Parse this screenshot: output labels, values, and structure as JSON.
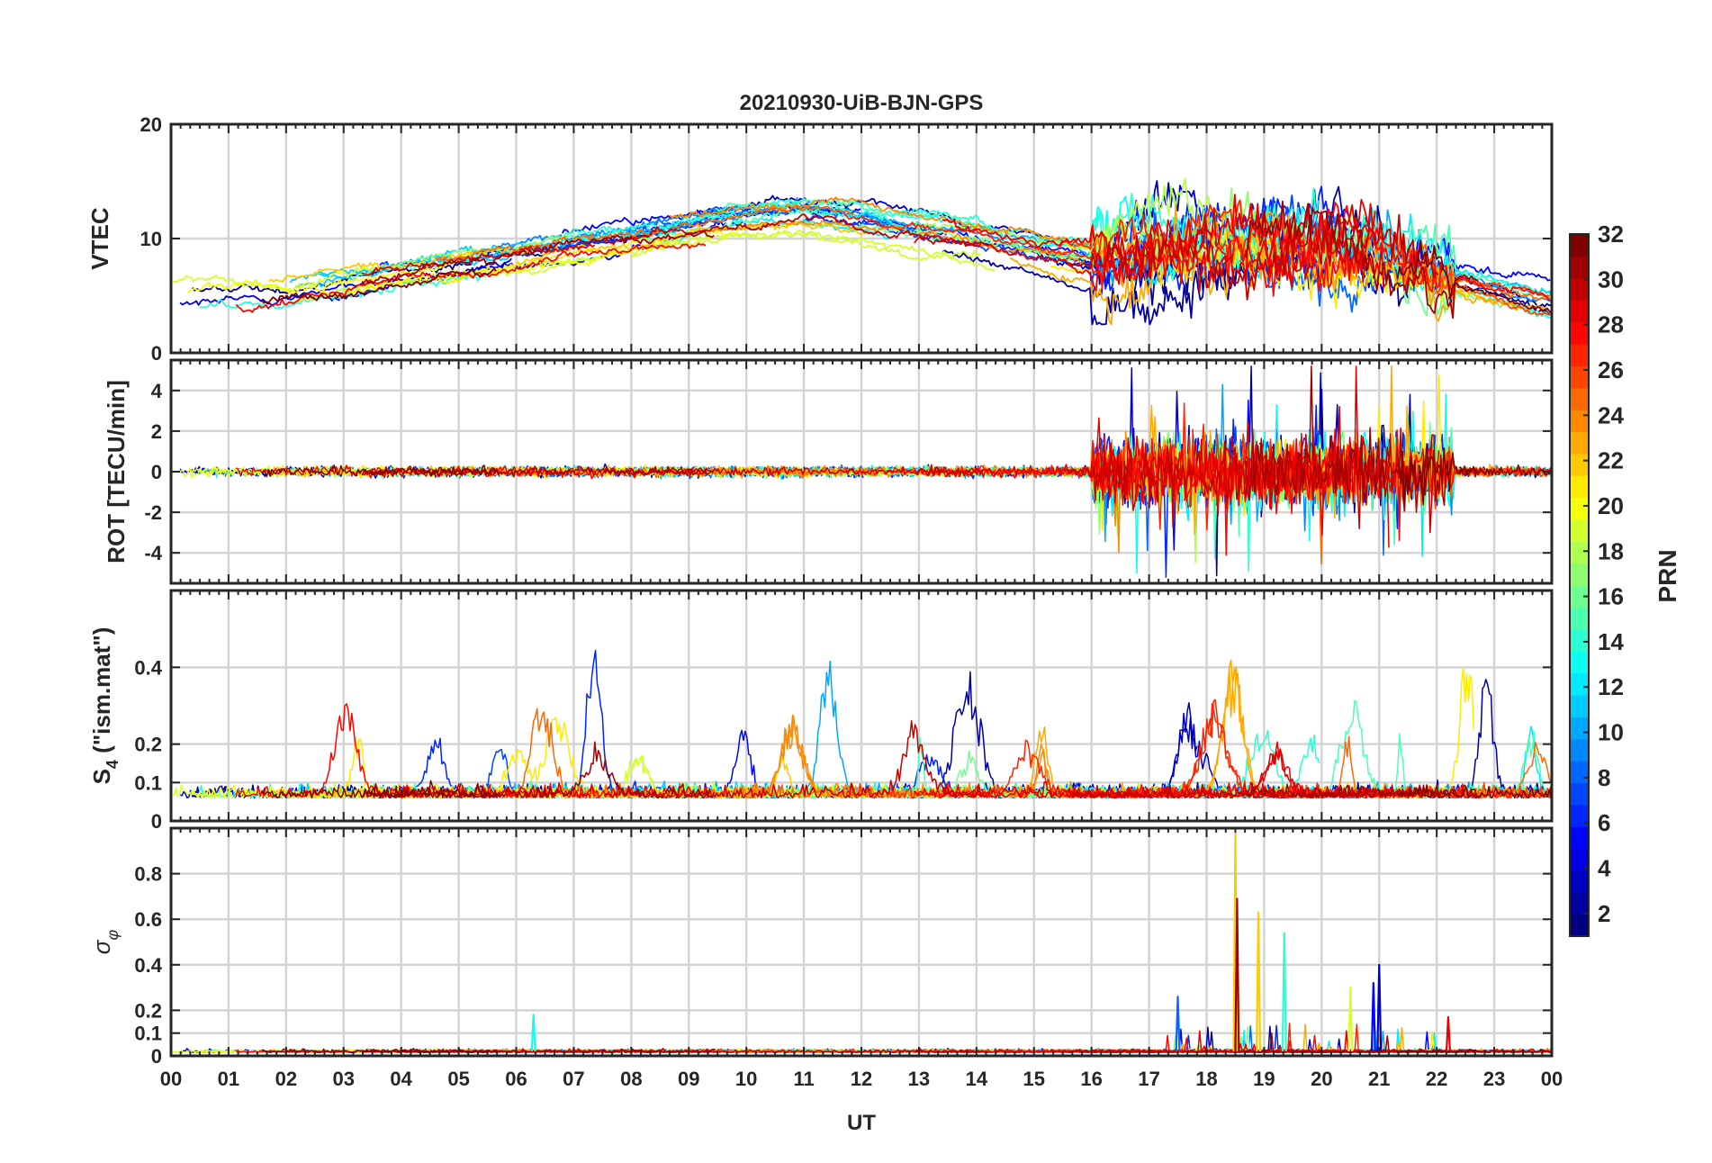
{
  "title": "20210930-UiB-BJN-GPS",
  "xaxis": {
    "label": "UT",
    "range": [
      0,
      24
    ],
    "ticks": [
      "00",
      "01",
      "02",
      "03",
      "04",
      "05",
      "06",
      "07",
      "08",
      "09",
      "10",
      "11",
      "12",
      "13",
      "14",
      "15",
      "16",
      "17",
      "18",
      "19",
      "20",
      "21",
      "22",
      "23",
      "00"
    ]
  },
  "colorbar": {
    "label": "PRN",
    "range": [
      1,
      32
    ],
    "ticks": [
      "2",
      "4",
      "6",
      "8",
      "10",
      "12",
      "14",
      "16",
      "18",
      "20",
      "22",
      "24",
      "26",
      "28",
      "30",
      "32"
    ],
    "colormap": "jet"
  },
  "chart_data": [
    {
      "type": "line",
      "panel": "VTEC",
      "ylabel": "VTEC",
      "ylim": [
        0,
        20
      ],
      "yticks": [
        "0",
        "10",
        "20"
      ],
      "ytick_values": [
        0,
        10,
        20
      ],
      "xlim": [
        0,
        24
      ],
      "grid": true,
      "series_note": "one line per GPS satellite (PRN 1-32), colored by PRN",
      "envelope": {
        "x": [
          0,
          2,
          4,
          6,
          8,
          10,
          11,
          12,
          14,
          16,
          18,
          20,
          21,
          22,
          24
        ],
        "y": [
          5,
          5.5,
          7,
          8.5,
          10,
          11.5,
          12,
          11.5,
          10,
          8,
          9,
          10,
          9.5,
          7,
          4.5
        ]
      }
    },
    {
      "type": "line",
      "panel": "ROT",
      "ylabel": "ROT [TECU/min]",
      "ylim": [
        -5.5,
        5.5
      ],
      "yticks": [
        "-4",
        "-2",
        "0",
        "2",
        "4"
      ],
      "ytick_values": [
        -4,
        -2,
        0,
        2,
        4
      ],
      "xlim": [
        0,
        24
      ],
      "grid": true,
      "series_note": "rate of TEC; quiet (about ±0.5) until ~16 UT, then fluctuations up to about ±5 between 16 and 22 UT"
    },
    {
      "type": "line",
      "panel": "S4",
      "ylabel": "S4 (\"ism.mat\")",
      "ylabel_main": "S",
      "ylabel_sub": "4",
      "ylabel_rest": " (\"ism.mat\")",
      "ylim": [
        0,
        0.6
      ],
      "yticks": [
        "0",
        "0.1",
        "0.2",
        "0.4"
      ],
      "ytick_values": [
        0,
        0.1,
        0.2,
        0.4
      ],
      "xlim": [
        0,
        24
      ],
      "grid": true,
      "series_note": "amplitude scintillation index; baseline ~0.05-0.1 with bursts to ~0.5"
    },
    {
      "type": "line",
      "panel": "sigma_phi",
      "ylabel": "σφ",
      "ylabel_main": "σ",
      "ylabel_sub": "φ",
      "ylim": [
        0,
        1
      ],
      "yticks": [
        "0",
        "0.1",
        "0.2",
        "0.4",
        "0.6",
        "0.8"
      ],
      "ytick_values": [
        0,
        0.1,
        0.2,
        0.4,
        0.6,
        0.8
      ],
      "xlim": [
        0,
        24
      ],
      "grid": true,
      "series_note": "phase scintillation index; near 0.02 with spikes between 17 and 22 UT",
      "spikes": [
        {
          "x": 6.3,
          "y": 0.18,
          "prn": 13
        },
        {
          "x": 17.5,
          "y": 0.26,
          "prn": 8
        },
        {
          "x": 18.5,
          "y": 0.98,
          "prn": 22
        },
        {
          "x": 18.53,
          "y": 0.69,
          "prn": 31
        },
        {
          "x": 18.9,
          "y": 0.63,
          "prn": 22
        },
        {
          "x": 19.35,
          "y": 0.54,
          "prn": 14
        },
        {
          "x": 20.5,
          "y": 0.3,
          "prn": 19
        },
        {
          "x": 20.9,
          "y": 0.32,
          "prn": 5
        },
        {
          "x": 21.0,
          "y": 0.4,
          "prn": 3
        },
        {
          "x": 22.2,
          "y": 0.17,
          "prn": 29
        }
      ]
    }
  ]
}
